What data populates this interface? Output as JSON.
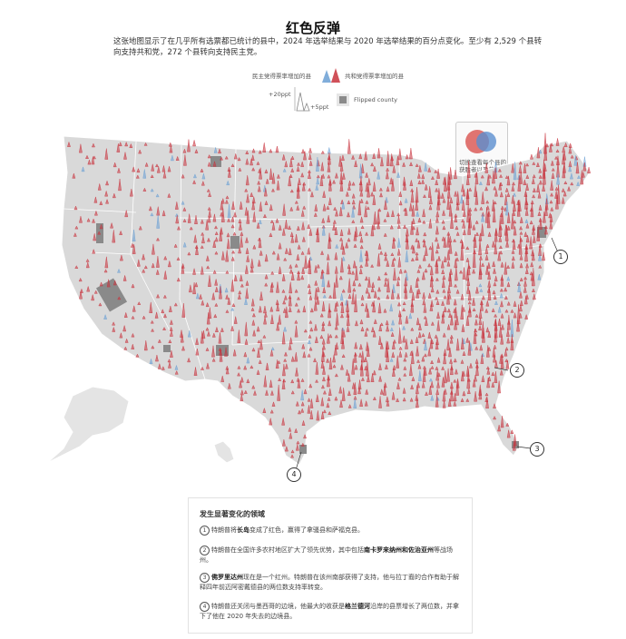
{
  "header": {
    "title": "红色反弹",
    "subtitle": "这张地图显示了在几乎所有选票都已统计的县中，2024 年选举结果与 2020 年选举结果的百分点变化。至少有 2,529 个县转向支持共和党，272 个县转向支持民主党。"
  },
  "legend": {
    "dem_label": "民主党得票率增加的县",
    "rep_label": "共和党得票率增加的县",
    "scale_high": "+20ppt",
    "scale_low": "+5ppt",
    "flipped_label": "Flipped county",
    "colors": {
      "rep": "#c8323c",
      "dem": "#6a9fd4",
      "flipped": "#8a8a8a",
      "land": "#d9d9d9"
    }
  },
  "toggle": {
    "label": "切换查看每个县的获胜者以及获胜幅度"
  },
  "callouts": [
    "1",
    "2",
    "3",
    "4"
  ],
  "notes": {
    "title": "发生显著变化的领域",
    "items": [
      {
        "num": "1",
        "pre": "特朗普将",
        "bold": "长岛",
        "post": "变成了红色，赢得了拿骚县和萨福克县。",
        "bold2": "",
        "post2": ""
      },
      {
        "num": "2",
        "pre": "特朗普在全国许多农村地区扩大了领先优势，其中包括",
        "bold": "南卡罗来纳州和佐治亚州",
        "post": "等战场州。",
        "bold2": "",
        "post2": ""
      },
      {
        "num": "3",
        "pre": "",
        "bold": "佛罗里达州",
        "post": "现在是一个红州。特朗普在该州南部获得了支持，他与拉丁裔的合作有助于解释四年前迈阿密戴德县的两位数支持率转变。",
        "bold2": "",
        "post2": ""
      },
      {
        "num": "4",
        "pre": "特朗普还关闭与墨西哥的边境，他最大的收获是",
        "bold": "格兰德河",
        "post": "沿岸的县票增长了两位数，并拿下了他在 2020 年失去的边境县。",
        "bold2": "",
        "post2": ""
      }
    ]
  }
}
